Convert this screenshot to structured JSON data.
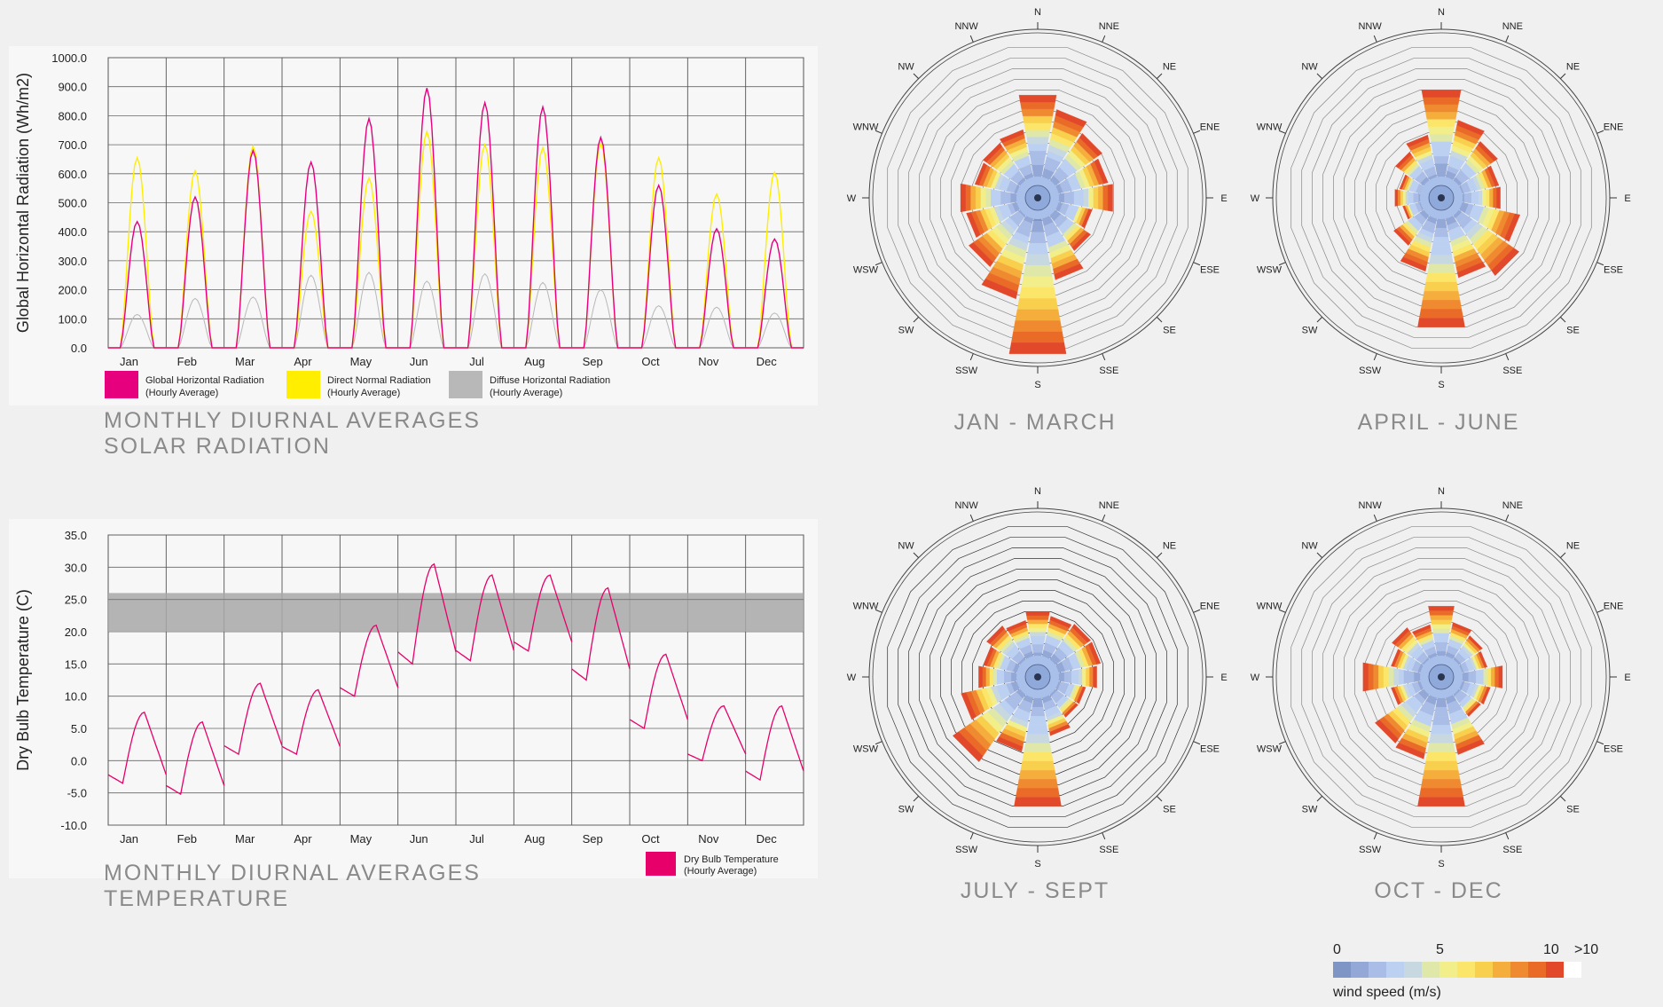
{
  "colors": {
    "ghr": "#e6007e",
    "dnr": "#ffee00",
    "dhr": "#b8b8b8",
    "temp": "#e8006a",
    "comfort_band": "#a8a8a8"
  },
  "captions": {
    "solar_line1": "MONTHLY DIURNAL AVERAGES",
    "solar_line2": "SOLAR RADIATION",
    "temp_line1": "MONTHLY DIURNAL AVERAGES",
    "temp_line2": "TEMPERATURE"
  },
  "rose_titles": [
    "JAN - MARCH",
    "APRIL - JUNE",
    "JULY - SEPT",
    "OCT - DEC"
  ],
  "directions": [
    "N",
    "NNE",
    "NE",
    "ENE",
    "E",
    "ESE",
    "SE",
    "SSE",
    "S",
    "SSW",
    "SW",
    "WSW",
    "W",
    "WNW",
    "NW",
    "NNW"
  ],
  "wind_legend": {
    "labels": [
      "0",
      "5",
      "10",
      ">10"
    ],
    "title": "wind speed (m/s)",
    "swatches": [
      "#7f95c6",
      "#93a8d6",
      "#a9bde6",
      "#bcd0f2",
      "#c8d8e0",
      "#dfe8a8",
      "#f2ee8a",
      "#fbe66a",
      "#f9cf4e",
      "#f5ad3c",
      "#f08a30",
      "#ea6a28",
      "#e2482a",
      "#ffffff"
    ]
  },
  "chart_data": [
    {
      "type": "line",
      "title": "",
      "ylabel": "Global Horizontal Radiation (Wh/m2)",
      "xlabel": "",
      "ylim": [
        0,
        1000
      ],
      "yticks": [
        "1000.0",
        "900.0",
        "800.0",
        "700.0",
        "600.0",
        "500.0",
        "400.0",
        "300.0",
        "200.0",
        "100.0",
        "0.0"
      ],
      "categories": [
        "Jan",
        "Feb",
        "Mar",
        "Apr",
        "May",
        "Jun",
        "Jul",
        "Aug",
        "Sep",
        "Oct",
        "Nov",
        "Dec"
      ],
      "grid": true,
      "series": [
        {
          "name": "Global Horizontal Radiation",
          "sub": "(Hourly Average)",
          "peaks": [
            435,
            520,
            680,
            640,
            790,
            895,
            845,
            830,
            725,
            560,
            410,
            375
          ]
        },
        {
          "name": "Direct Normal Radiation",
          "sub": "(Hourly Average)",
          "peaks": [
            655,
            610,
            695,
            470,
            585,
            745,
            700,
            690,
            705,
            655,
            530,
            605
          ]
        },
        {
          "name": "Diffuse Horizontal Radiation",
          "sub": "(Hourly Average)",
          "peaks": [
            115,
            170,
            175,
            250,
            260,
            230,
            255,
            225,
            200,
            145,
            140,
            120
          ]
        }
      ]
    },
    {
      "type": "line",
      "title": "",
      "ylabel": "Dry Bulb Temperature (C)",
      "xlabel": "",
      "ylim": [
        -10,
        35
      ],
      "yticks": [
        "35.0",
        "30.0",
        "25.0",
        "20.0",
        "15.0",
        "10.0",
        "5.0",
        "0.0",
        "-5.0",
        "-10.0"
      ],
      "categories": [
        "Jan",
        "Feb",
        "Mar",
        "Apr",
        "May",
        "Jun",
        "Jul",
        "Aug",
        "Sep",
        "Oct",
        "Nov",
        "Dec"
      ],
      "grid": true,
      "comfort_band": [
        20,
        26
      ],
      "series": [
        {
          "name": "Dry Bulb Temperature",
          "sub": "(Hourly Average)",
          "min": [
            -3.5,
            -5.2,
            1.0,
            1.0,
            10.0,
            15.0,
            15.5,
            17.0,
            12.5,
            5.0,
            0.0,
            -3.0
          ],
          "max": [
            7.5,
            6.0,
            12.0,
            11.0,
            21.0,
            30.5,
            28.8,
            28.8,
            26.8,
            16.5,
            8.5,
            8.5
          ]
        }
      ]
    }
  ],
  "wind_roses": [
    {
      "title": "JAN - MARCH",
      "totals": [
        8.5,
        7.2,
        6.1,
        5.5,
        5.9,
        4.0,
        4.8,
        6.6,
        13.5,
        8.4,
        6.6,
        5.6,
        6.1,
        4.8,
        5.0,
        5.3
      ],
      "calm_extent": [
        4.5,
        3.8,
        3.4,
        3.0,
        3.4,
        2.8,
        3.0,
        3.6,
        5.0,
        3.6,
        3.0,
        2.8,
        3.4,
        2.8,
        2.8,
        3.0
      ]
    },
    {
      "title": "APRIL - JUNE",
      "totals": [
        9.0,
        6.2,
        5.2,
        4.3,
        4.4,
        6.3,
        7.6,
        6.4,
        11.0,
        5.8,
        4.2,
        2.5,
        3.2,
        2.8,
        4.0,
        4.8
      ],
      "calm_extent": [
        4.2,
        3.0,
        2.8,
        2.6,
        2.6,
        3.0,
        3.2,
        3.0,
        4.5,
        3.0,
        2.6,
        2.0,
        2.2,
        2.0,
        2.5,
        2.8
      ]
    },
    {
      "title": "JULY - SEPT",
      "totals": [
        5.0,
        4.6,
        4.8,
        4.8,
        4.4,
        3.4,
        3.4,
        4.4,
        11.0,
        5.9,
        8.4,
        6.1,
        4.4,
        4.0,
        4.6,
        4.2
      ],
      "calm_extent": [
        3.0,
        3.0,
        3.0,
        3.0,
        3.0,
        2.5,
        2.5,
        3.0,
        4.5,
        3.4,
        3.6,
        3.0,
        2.8,
        2.6,
        2.8,
        2.6
      ]
    },
    {
      "title": "OCT - DEC",
      "totals": [
        5.5,
        4.0,
        3.5,
        3.2,
        4.6,
        3.5,
        3.3,
        6.2,
        11.0,
        6.6,
        6.3,
        3.6,
        6.2,
        3.6,
        4.4,
        3.8
      ],
      "calm_extent": [
        3.0,
        2.6,
        2.4,
        2.2,
        3.0,
        2.4,
        2.4,
        3.4,
        4.6,
        3.6,
        3.2,
        2.4,
        3.2,
        2.4,
        2.6,
        2.4
      ]
    }
  ]
}
